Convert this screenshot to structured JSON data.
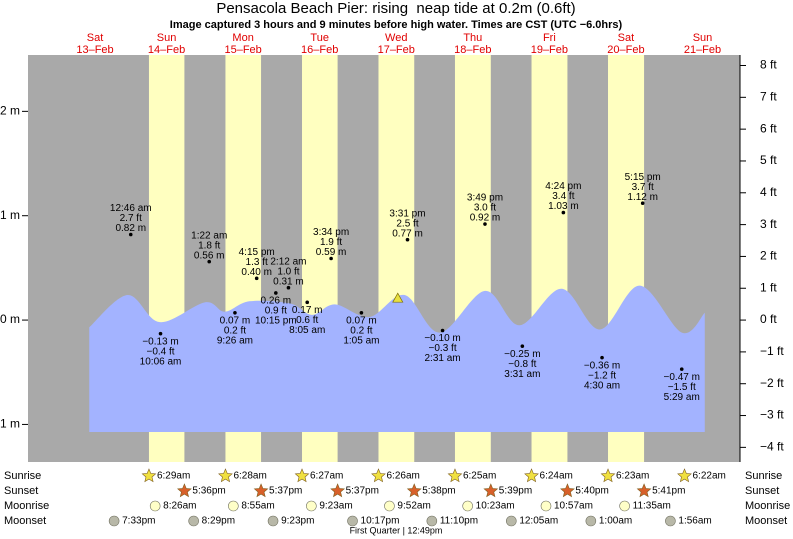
{
  "chart_data": {
    "type": "area",
    "title": "Pensacola Beach Pier: rising  neap tide at 0.2m (0.6ft)",
    "subtitle": "Image captured 3 hours and 9 minutes before high water. Times are CST (UTC −6.0hrs)",
    "weekdays": [
      "Sat",
      "Sun",
      "Mon",
      "Tue",
      "Wed",
      "Thu",
      "Fri",
      "Sat",
      "Sun"
    ],
    "dates": [
      "13–Feb",
      "14–Feb",
      "15–Feb",
      "16–Feb",
      "17–Feb",
      "18–Feb",
      "19–Feb",
      "20–Feb",
      "21–Feb"
    ],
    "xlim": [
      -0.31,
      8.99
    ],
    "ylim": [
      -1.36,
      2.54
    ],
    "yticks": [
      {
        "value": -1,
        "label": "−1 m"
      },
      {
        "value": 0,
        "label": "0 m"
      },
      {
        "value": 1,
        "label": "1 m"
      },
      {
        "value": 2,
        "label": "2 m"
      }
    ],
    "y2lim": [
      -4.46,
      8.33
    ],
    "y2ticks": [
      {
        "value": -4,
        "label": "−4 ft"
      },
      {
        "value": -3,
        "label": "−3 ft"
      },
      {
        "value": -2,
        "label": "−2 ft"
      },
      {
        "value": -1,
        "label": "−1 ft"
      },
      {
        "value": 0,
        "label": "0 ft"
      },
      {
        "value": 1,
        "label": "1 ft"
      },
      {
        "value": 2,
        "label": "2 ft"
      },
      {
        "value": 3,
        "label": "3 ft"
      },
      {
        "value": 4,
        "label": "4 ft"
      },
      {
        "value": 5,
        "label": "5 ft"
      },
      {
        "value": 6,
        "label": "6 ft"
      },
      {
        "value": 7,
        "label": "7 ft"
      },
      {
        "value": 8,
        "label": "8 ft"
      }
    ],
    "background_color": "#a9a9a9",
    "daylight_color": "#ffffc0",
    "tide": {
      "color": "#a3b3ff",
      "x": [
        0.49,
        0.99,
        1.41,
        2.0,
        2.26,
        2.58,
        3.11,
        3.4,
        3.7,
        4.15,
        4.61,
        5.07,
        5.66,
        6.11,
        6.66,
        7.16,
        7.68,
        8.23,
        8.53
      ],
      "values": [
        -0.07,
        0.24,
        -0.02,
        0.17,
        0.08,
        0.18,
        0.16,
        0.05,
        0.15,
        0.03,
        0.24,
        -0.12,
        0.28,
        -0.05,
        0.3,
        -0.09,
        0.33,
        -0.12,
        0.07
      ]
    },
    "extremes": {
      "x": [
        1.032,
        1.421,
        2.057,
        2.393,
        2.677,
        2.927,
        3.092,
        3.337,
        3.649,
        4.045,
        4.647,
        5.105,
        5.659,
        6.147,
        6.683,
        7.188,
        7.719,
        8.229
      ],
      "values": [
        0.82,
        -0.13,
        0.56,
        0.07,
        0.4,
        0.26,
        0.31,
        0.17,
        0.59,
        0.07,
        0.77,
        -0.1,
        0.92,
        -0.25,
        1.03,
        -0.36,
        1.12,
        -0.47
      ],
      "value_labels": [
        "0.82 m",
        "−0.13 m",
        "0.56 m",
        "0.07 m",
        "0.40 m",
        "0.26 m",
        "0.31 m",
        "0.17 m",
        "0.59 m",
        "0.07 m",
        "0.77 m",
        "−0.10 m",
        "0.92 m",
        "−0.25 m",
        "1.03 m",
        "−0.36 m",
        "1.12 m",
        "−0.47 m"
      ],
      "feet_labels": [
        "2.7 ft",
        "−0.4 ft",
        "1.8 ft",
        "0.2 ft",
        "1.3 ft",
        "0.9 ft",
        "1.0 ft",
        "0.6 ft",
        "1.9 ft",
        "0.2 ft",
        "2.5 ft",
        "−0.3 ft",
        "3.0 ft",
        "−0.8 ft",
        "3.4 ft",
        "−1.2 ft",
        "3.7 ft",
        "−1.5 ft"
      ],
      "times": [
        "12:46 am",
        "10:06 am",
        "1:22 am",
        "9:26 am",
        "4:15 pm",
        "10:15 pm",
        "2:12 am",
        "8:05 am",
        "3:34 pm",
        "1:05 am",
        "3:31 pm",
        "2:31 am",
        "3:49 pm",
        "3:31 am",
        "4:24 pm",
        "4:30 am",
        "5:15 pm",
        "5:29 am"
      ]
    },
    "now": {
      "x": 4.52,
      "value": 0.2,
      "color": "#e8e040"
    },
    "sunrise": {
      "label": "Sunrise",
      "color": "#f0e040",
      "times": [
        "6:29am",
        "6:28am",
        "6:27am",
        "6:26am",
        "6:25am",
        "6:24am",
        "6:23am",
        "6:22am"
      ],
      "x": [
        1.27,
        2.269,
        3.269,
        4.268,
        5.267,
        6.267,
        7.266,
        8.265
      ]
    },
    "sunset": {
      "label": "Sunset",
      "color": "#d8602a",
      "times": [
        "5:36pm",
        "5:37pm",
        "5:37pm",
        "5:38pm",
        "5:39pm",
        "5:40pm",
        "5:41pm"
      ],
      "x": [
        1.733,
        2.734,
        3.734,
        4.735,
        5.735,
        6.736,
        7.737
      ]
    },
    "moonrise": {
      "label": "Moonrise",
      "color": "#ffffc8",
      "times": [
        "8:26am",
        "8:55am",
        "9:23am",
        "9:52am",
        "10:23am",
        "10:57am",
        "11:35am"
      ],
      "x": [
        1.351,
        2.372,
        3.391,
        4.411,
        5.433,
        6.456,
        7.483
      ]
    },
    "moonset": {
      "label": "Moonset",
      "color": "#b8b8a8",
      "times": [
        "7:33pm",
        "8:29pm",
        "9:23pm",
        "10:17pm",
        "11:10pm",
        "12:05am",
        "1:00am",
        "1:56am"
      ],
      "x": [
        0.815,
        1.854,
        2.891,
        3.929,
        4.965,
        6.003,
        7.042,
        8.081
      ]
    },
    "moon_phase": "First Quarter | 12:49pm"
  }
}
